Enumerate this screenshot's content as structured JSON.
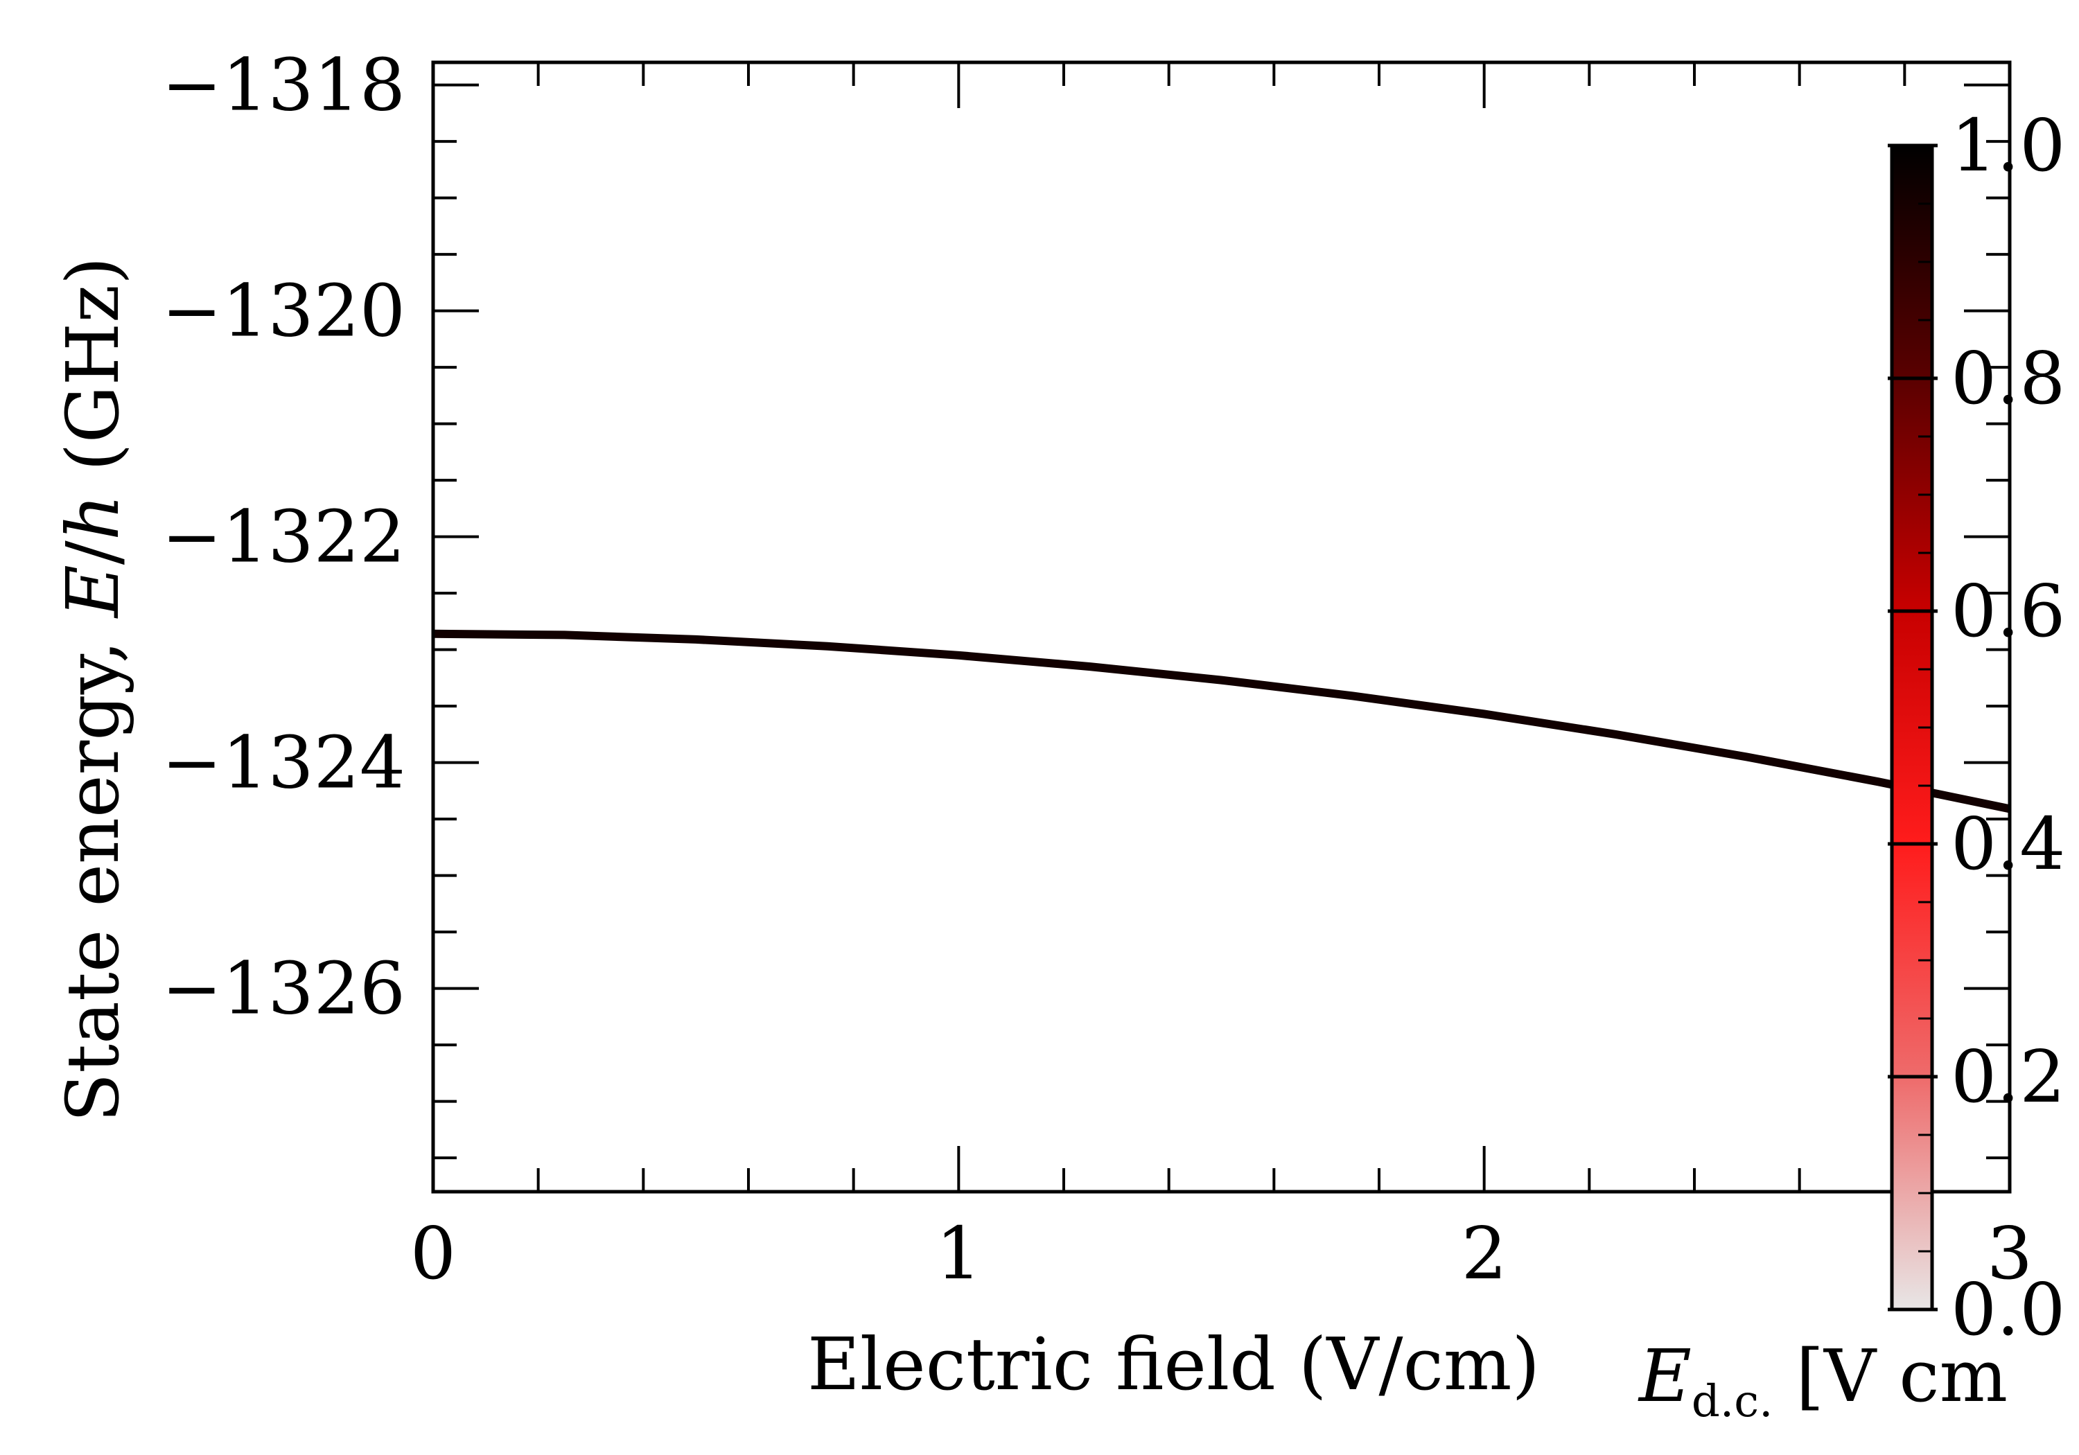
{
  "chart_data": {
    "type": "line",
    "xlabel": "Electric field (V/cm)",
    "ylabel": {
      "prefix": "State energy, ",
      "var": "E",
      "slash": "/",
      "h": "h",
      "unit": " (GHz)"
    },
    "xlim": [
      0,
      3
    ],
    "ylim": [
      -1327.8,
      -1317.8
    ],
    "x_ticks": [
      0,
      1,
      2,
      3
    ],
    "x_tick_labels": [
      "0",
      "1",
      "2",
      "3"
    ],
    "x_minor_step": 0.2,
    "y_ticks": [
      -1318,
      -1320,
      -1322,
      -1324,
      -1326
    ],
    "y_tick_labels": [
      "−1318",
      "−1320",
      "−1322",
      "−1324",
      "−1326"
    ],
    "y_minor_step": 0.5,
    "series": [
      {
        "color": "#110000",
        "x": [
          0,
          0.25,
          0.5,
          0.75,
          1.0,
          1.25,
          1.5,
          1.75,
          2.0,
          2.25,
          2.5,
          2.75,
          3.0
        ],
        "y": [
          -1322.86,
          -1322.87,
          -1322.91,
          -1322.97,
          -1323.05,
          -1323.15,
          -1323.27,
          -1323.41,
          -1323.57,
          -1323.75,
          -1323.95,
          -1324.17,
          -1324.41
        ]
      }
    ],
    "colorbar": {
      "range": [
        0.0,
        1.0
      ],
      "ticks": [
        0.0,
        0.2,
        0.4,
        0.6,
        0.8,
        1.0
      ],
      "tick_labels": [
        "0.0",
        "0.2",
        "0.4",
        "0.6",
        "0.8",
        "1.0"
      ],
      "minor_step": 0.05,
      "colors": [
        "#e8e6e6",
        "#ee6b6b",
        "#ff1c1c",
        "#c80000",
        "#5a0000",
        "#000000"
      ],
      "label": {
        "var": "E",
        "sub": "d.c.",
        "unit": " [V cm"
      }
    }
  }
}
